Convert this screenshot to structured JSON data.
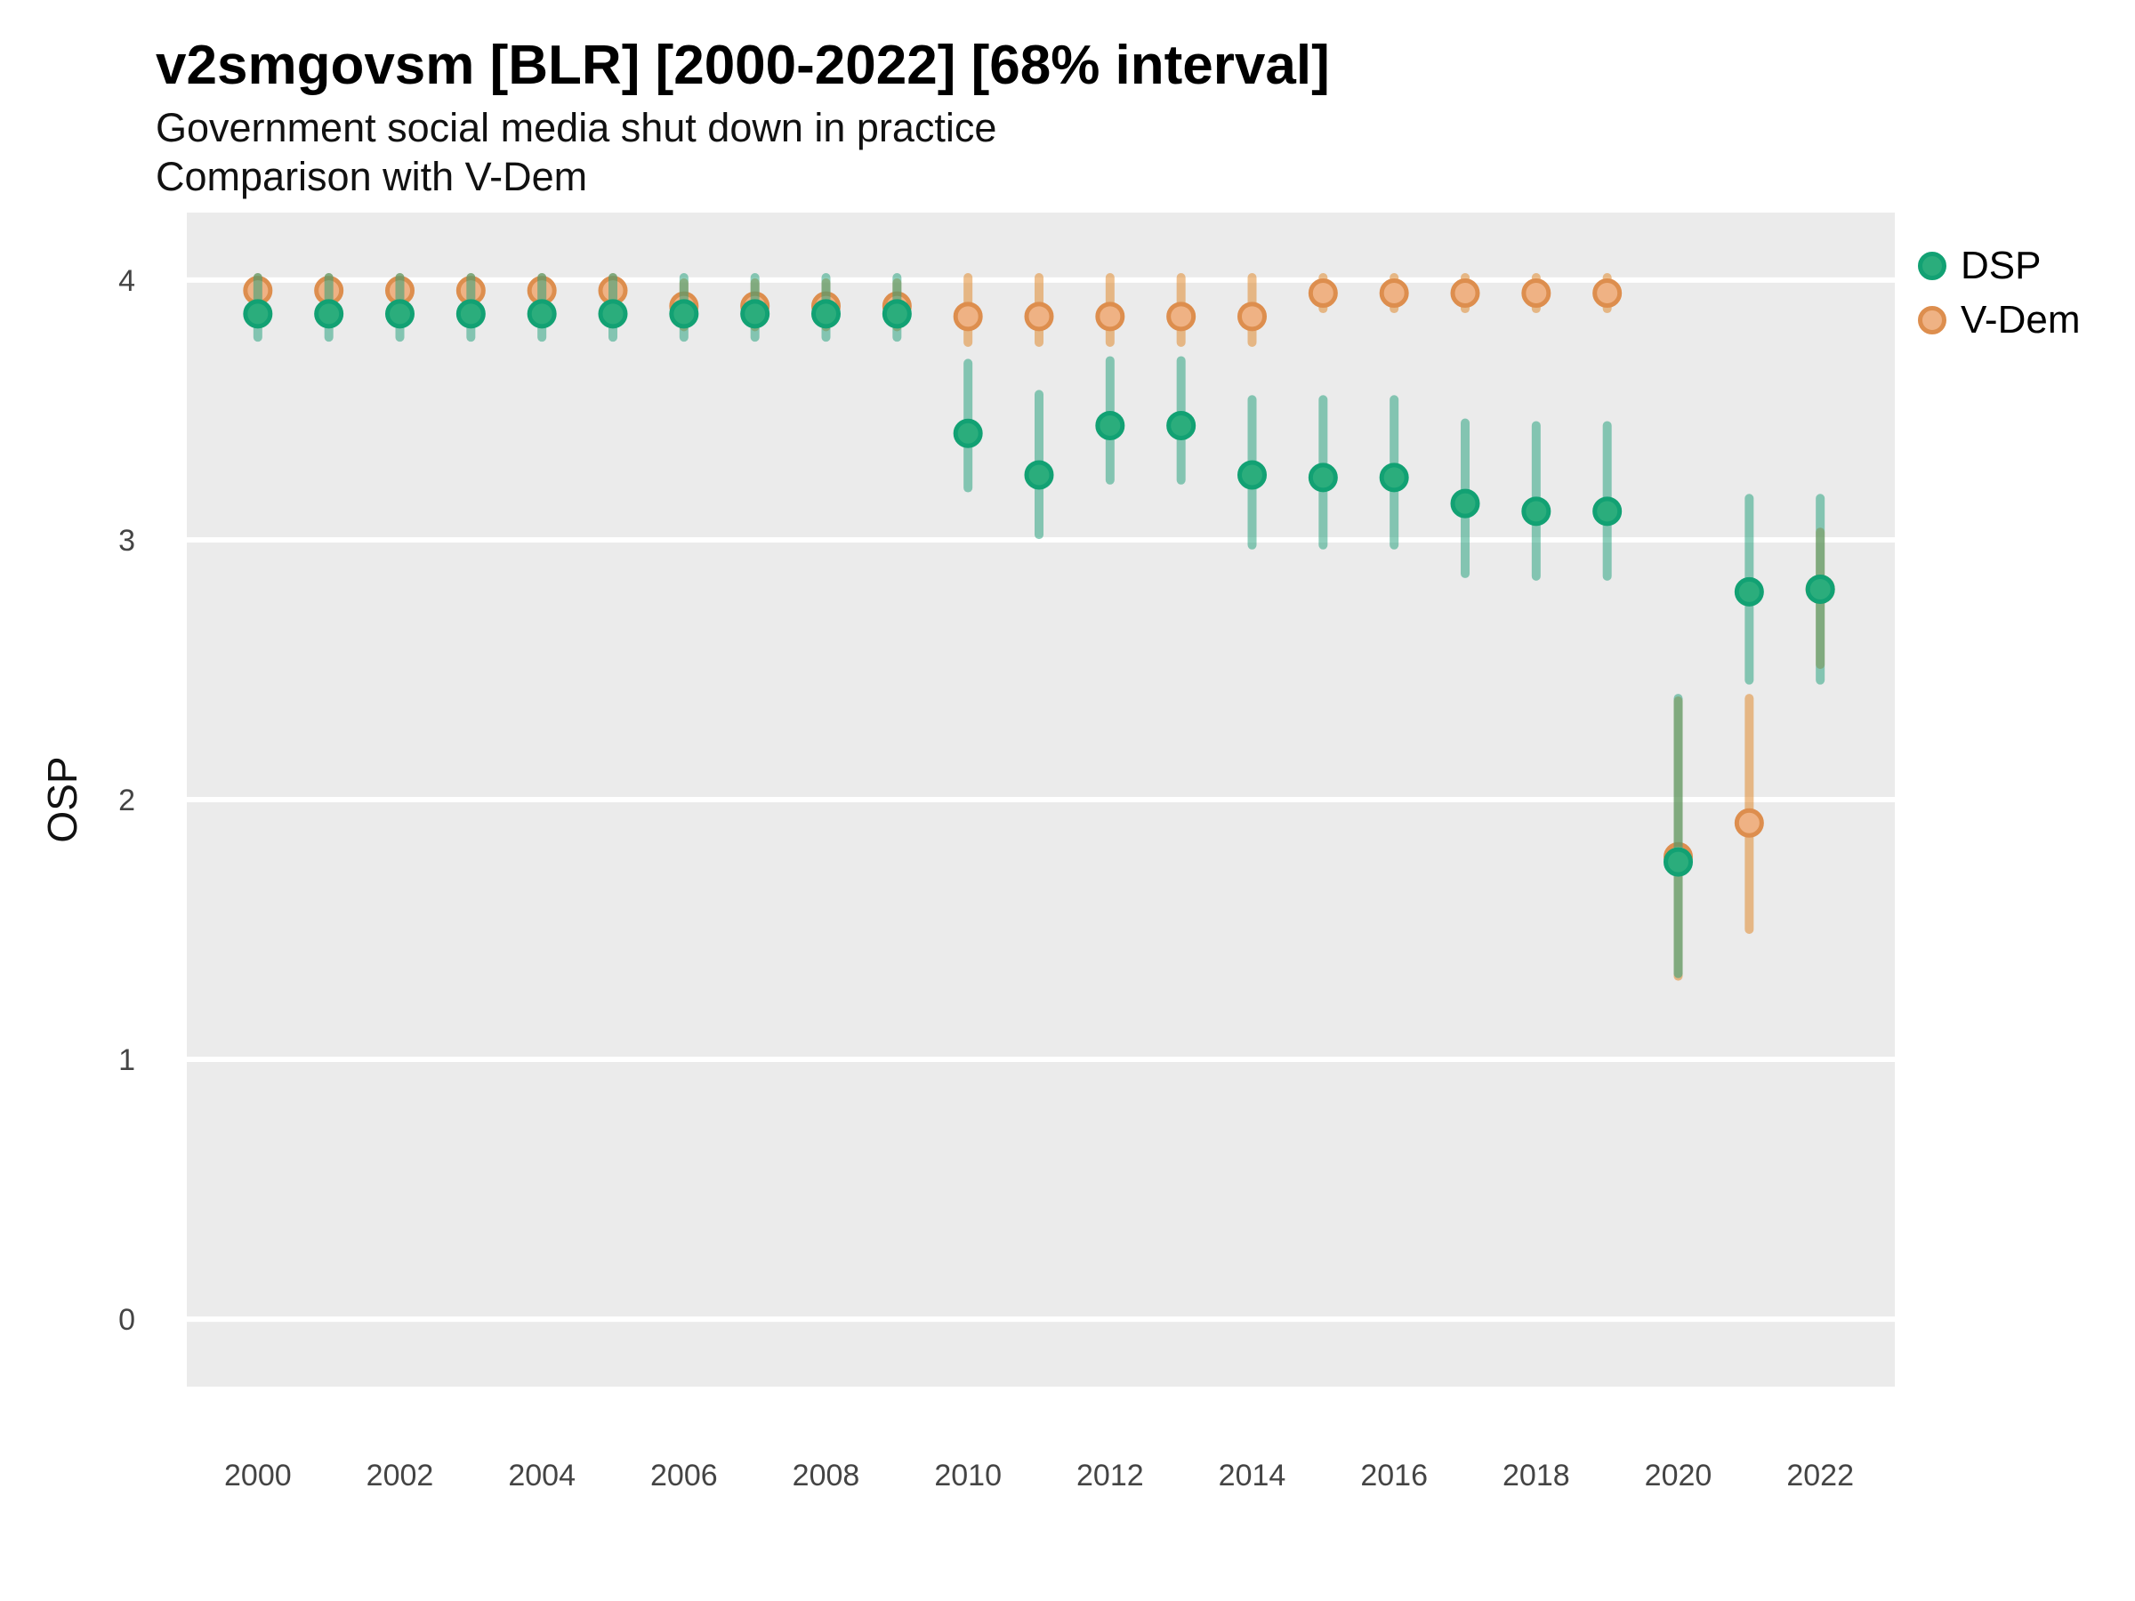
{
  "header": {
    "title": "v2smgovsm [BLR] [2000-2022] [68% interval]",
    "subtitle1": "Government social media shut down in practice",
    "subtitle2": "Comparison with V-Dem"
  },
  "chart_data": {
    "type": "scatter",
    "title": "v2smgovsm [BLR] [2000-2022] [68% interval]",
    "subtitle": [
      "Government social media shut down in practice",
      "Comparison with V-Dem"
    ],
    "xlabel": "",
    "ylabel": "OSP",
    "x_domain": [
      1999,
      2023.05
    ],
    "y_domain": [
      -0.26,
      4.26
    ],
    "y_ticks": [
      0,
      1,
      2,
      3,
      4
    ],
    "x_tick_years": [
      2000,
      2002,
      2004,
      2006,
      2008,
      2010,
      2012,
      2014,
      2016,
      2018,
      2020,
      2022
    ],
    "grid": "major-horizontal-only",
    "legend_position": "right",
    "panel_bg": "#EBEBEB",
    "grid_color": "#FFFFFF",
    "tick_label_color": "#444444",
    "years": [
      2000,
      2001,
      2002,
      2003,
      2004,
      2005,
      2006,
      2007,
      2008,
      2009,
      2010,
      2011,
      2012,
      2013,
      2014,
      2015,
      2016,
      2017,
      2018,
      2019,
      2020,
      2021,
      2022
    ],
    "interval_level": "68%",
    "series": [
      {
        "name": "DSP",
        "point_fill": "#2BAD7C",
        "point_stroke": "#12A173",
        "bar_color": "rgba(27,158,119,0.5)",
        "values": [
          3.87,
          3.87,
          3.87,
          3.87,
          3.87,
          3.87,
          3.87,
          3.87,
          3.87,
          3.87,
          3.41,
          3.25,
          3.44,
          3.44,
          3.25,
          3.24,
          3.24,
          3.14,
          3.11,
          3.11,
          1.76,
          2.8,
          2.81
        ],
        "lower": [
          3.78,
          3.78,
          3.78,
          3.78,
          3.78,
          3.78,
          3.78,
          3.78,
          3.78,
          3.78,
          3.2,
          3.02,
          3.23,
          3.23,
          2.98,
          2.98,
          2.98,
          2.87,
          2.86,
          2.86,
          1.33,
          2.46,
          2.46
        ],
        "upper": [
          4.01,
          4.01,
          4.01,
          4.01,
          4.01,
          4.01,
          4.01,
          4.01,
          4.01,
          4.01,
          3.68,
          3.56,
          3.69,
          3.69,
          3.54,
          3.54,
          3.54,
          3.45,
          3.44,
          3.44,
          2.39,
          3.16,
          3.16
        ]
      },
      {
        "name": "V-Dem",
        "point_fill": "#EFB284",
        "point_stroke": "#DD8E4E",
        "bar_color": "rgba(224,130,30,0.5)",
        "values": [
          3.96,
          3.96,
          3.96,
          3.96,
          3.96,
          3.96,
          3.9,
          3.9,
          3.9,
          3.9,
          3.86,
          3.86,
          3.86,
          3.86,
          3.86,
          3.95,
          3.95,
          3.95,
          3.95,
          3.95,
          1.78,
          1.91,
          2.81
        ],
        "lower": [
          3.91,
          3.91,
          3.91,
          3.91,
          3.91,
          3.91,
          3.82,
          3.82,
          3.82,
          3.82,
          3.76,
          3.76,
          3.76,
          3.76,
          3.76,
          3.89,
          3.89,
          3.89,
          3.89,
          3.89,
          1.32,
          1.5,
          2.52
        ],
        "upper": [
          4.01,
          4.01,
          4.01,
          4.01,
          4.01,
          4.01,
          3.99,
          3.99,
          3.99,
          3.99,
          4.01,
          4.01,
          4.01,
          4.01,
          4.01,
          4.01,
          4.01,
          4.01,
          4.01,
          4.01,
          2.38,
          2.39,
          3.03
        ]
      }
    ]
  }
}
